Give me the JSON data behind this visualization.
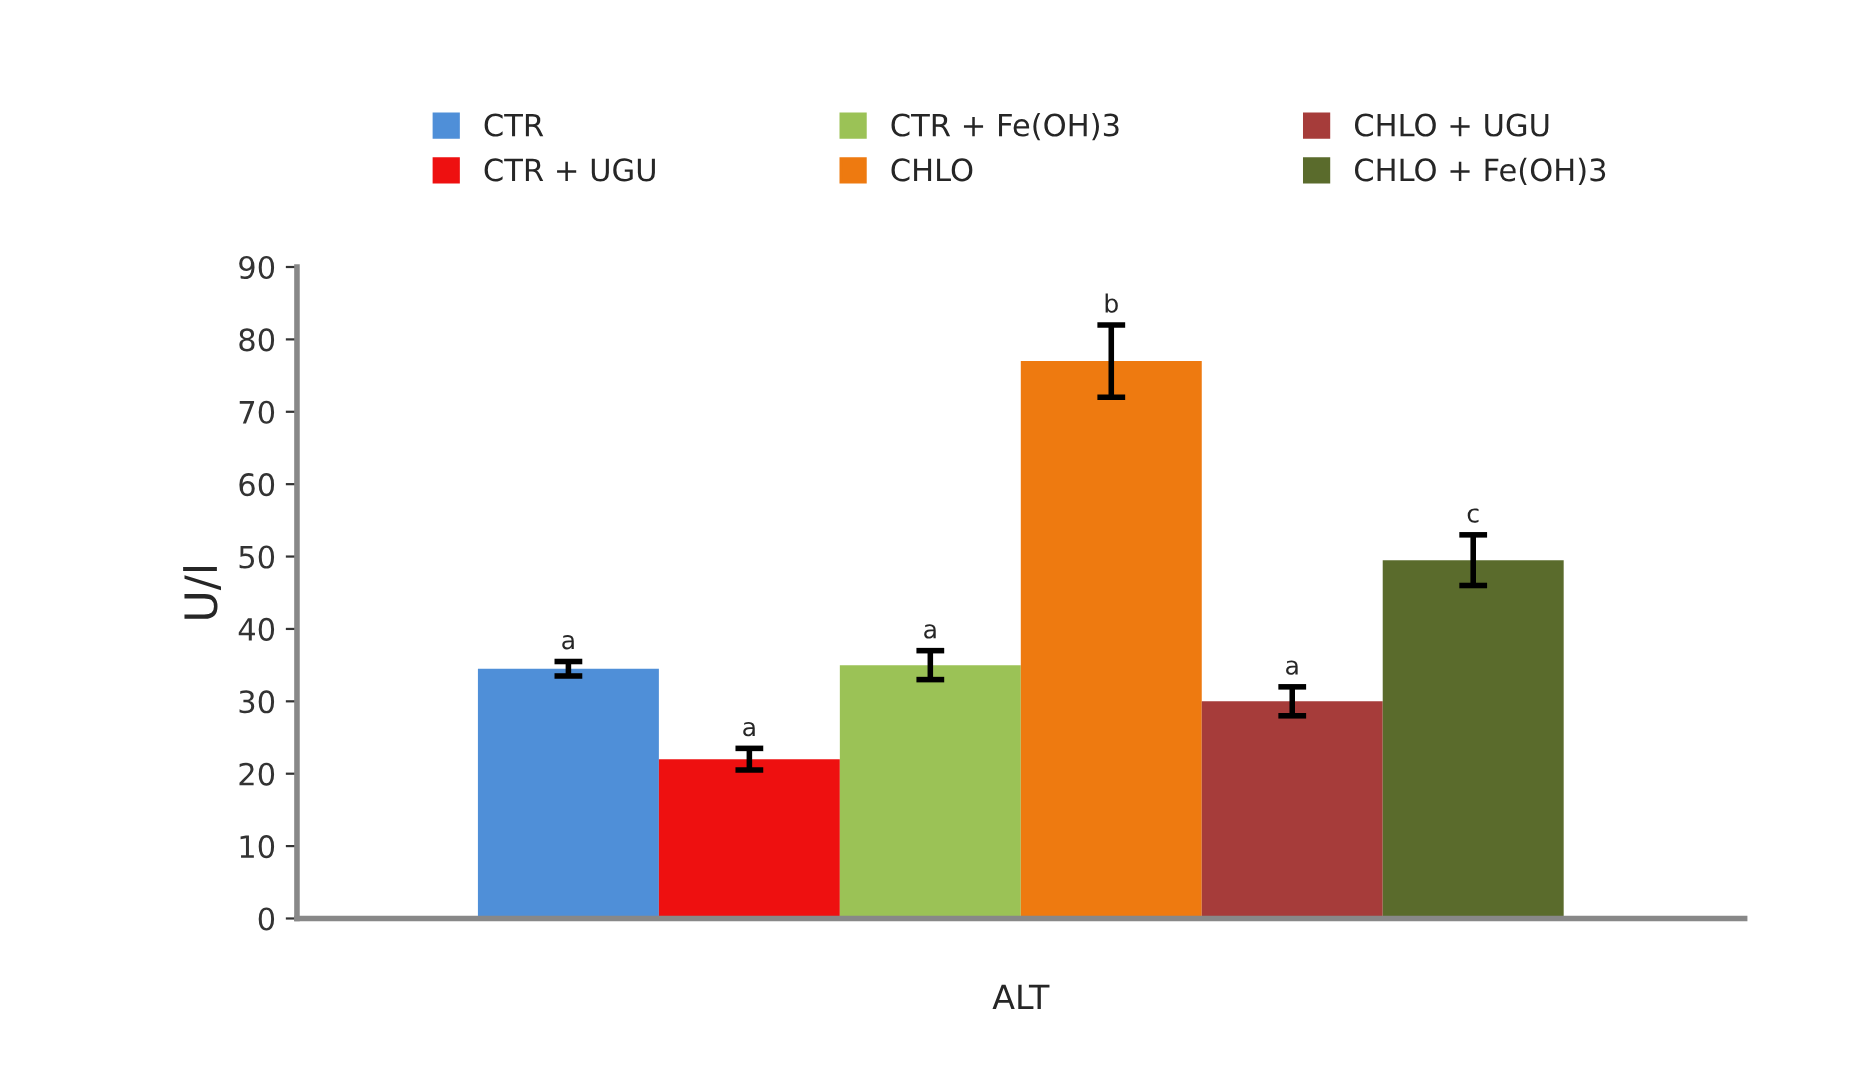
{
  "chart_data": {
    "type": "bar",
    "ylabel": "U/l",
    "xlabel": "ALT",
    "categories": [
      null
    ],
    "ylim": [
      0,
      90
    ],
    "yticks": [
      0,
      10,
      20,
      30,
      40,
      50,
      60,
      70,
      80,
      90
    ],
    "grid": false,
    "legend": "top",
    "series": [
      {
        "name": "CTR",
        "color": "#4f8fd8",
        "values": [
          34.5
        ],
        "errors": [
          1
        ],
        "value_labels": [
          "a"
        ]
      },
      {
        "name": "CTR + UGU",
        "color": "#ee1010",
        "values": [
          22
        ],
        "errors": [
          1.5
        ],
        "value_labels": [
          "a"
        ]
      },
      {
        "name": "CTR + Fe(OH)3",
        "color": "#9bc256",
        "values": [
          35
        ],
        "errors": [
          2
        ],
        "value_labels": [
          "a"
        ]
      },
      {
        "name": "CHLO",
        "color": "#ee7a10",
        "values": [
          77
        ],
        "errors": [
          5
        ],
        "value_labels": [
          "b"
        ]
      },
      {
        "name": "CHLO + UGU",
        "color": "#a63c3a",
        "values": [
          30
        ],
        "errors": [
          2
        ],
        "value_labels": [
          "a"
        ]
      },
      {
        "name": "CHLO + Fe(OH)3",
        "color": "#5a6b2c",
        "values": [
          49.5
        ],
        "errors": [
          3.5
        ],
        "value_labels": [
          "c"
        ]
      }
    ]
  }
}
